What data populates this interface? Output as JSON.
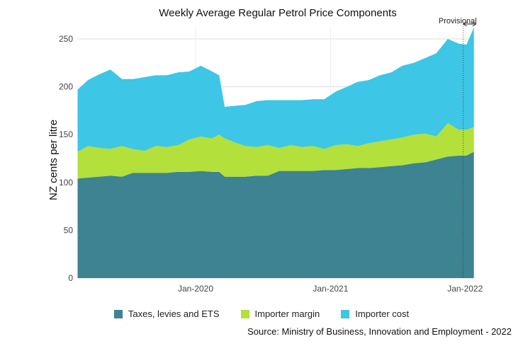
{
  "chart_data": {
    "type": "area",
    "stacked": true,
    "title": "Weekly Average Regular Petrol Price Components",
    "xlabel": "",
    "ylabel": "NZ cents per litre",
    "ylim": [
      0,
      262
    ],
    "yticks": [
      0,
      50,
      100,
      150,
      200,
      250
    ],
    "xticks": [
      {
        "date": "2020-01-01",
        "label": "Jan-2020"
      },
      {
        "date": "2021-01-01",
        "label": "Jan-2021"
      },
      {
        "date": "2022-01-01",
        "label": "Jan-2022"
      }
    ],
    "xlim": [
      "2019-02-15",
      "2022-01-25"
    ],
    "grid": true,
    "legend_position": "bottom",
    "annotation": {
      "label": "Provisional",
      "date": "2021-12-27"
    },
    "source": "Source: Ministry of Business, Innovation and Employment - 2022",
    "x": [
      "2019-02-15",
      "2019-03-15",
      "2019-04-15",
      "2019-05-15",
      "2019-06-15",
      "2019-07-15",
      "2019-08-15",
      "2019-09-15",
      "2019-10-15",
      "2019-11-15",
      "2019-12-15",
      "2020-01-15",
      "2020-02-15",
      "2020-03-05",
      "2020-03-20",
      "2020-04-15",
      "2020-05-15",
      "2020-06-15",
      "2020-07-15",
      "2020-08-15",
      "2020-09-15",
      "2020-10-15",
      "2020-11-15",
      "2020-12-15",
      "2021-01-15",
      "2021-02-15",
      "2021-03-15",
      "2021-04-15",
      "2021-05-15",
      "2021-06-15",
      "2021-07-15",
      "2021-08-15",
      "2021-09-15",
      "2021-10-15",
      "2021-11-15",
      "2021-12-15",
      "2022-01-05",
      "2022-01-25"
    ],
    "series": [
      {
        "name": "Taxes, levies and ETS",
        "color": "#3d8391",
        "values": [
          104,
          105,
          106,
          107,
          106,
          110,
          110,
          110,
          110,
          111,
          111,
          112,
          111,
          111,
          106,
          106,
          106,
          107,
          107,
          112,
          112,
          112,
          112,
          113,
          113,
          114,
          115,
          115,
          116,
          117,
          118,
          120,
          121,
          124,
          127,
          128,
          128,
          132
        ]
      },
      {
        "name": "Importer margin",
        "color": "#b3e03b",
        "values": [
          28,
          33,
          30,
          28,
          32,
          25,
          23,
          28,
          27,
          28,
          34,
          36,
          35,
          39,
          40,
          36,
          32,
          30,
          32,
          24,
          27,
          25,
          26,
          22,
          26,
          26,
          23,
          26,
          27,
          28,
          29,
          30,
          30,
          24,
          35,
          27,
          27,
          26
        ]
      },
      {
        "name": "Importer cost",
        "color": "#3dc6e6",
        "values": [
          65,
          69,
          77,
          83,
          70,
          73,
          77,
          74,
          75,
          76,
          71,
          74,
          70,
          62,
          33,
          38,
          43,
          48,
          47,
          50,
          47,
          49,
          49,
          52,
          56,
          60,
          67,
          66,
          69,
          70,
          75,
          75,
          79,
          87,
          88,
          90,
          89,
          104
        ]
      }
    ]
  }
}
